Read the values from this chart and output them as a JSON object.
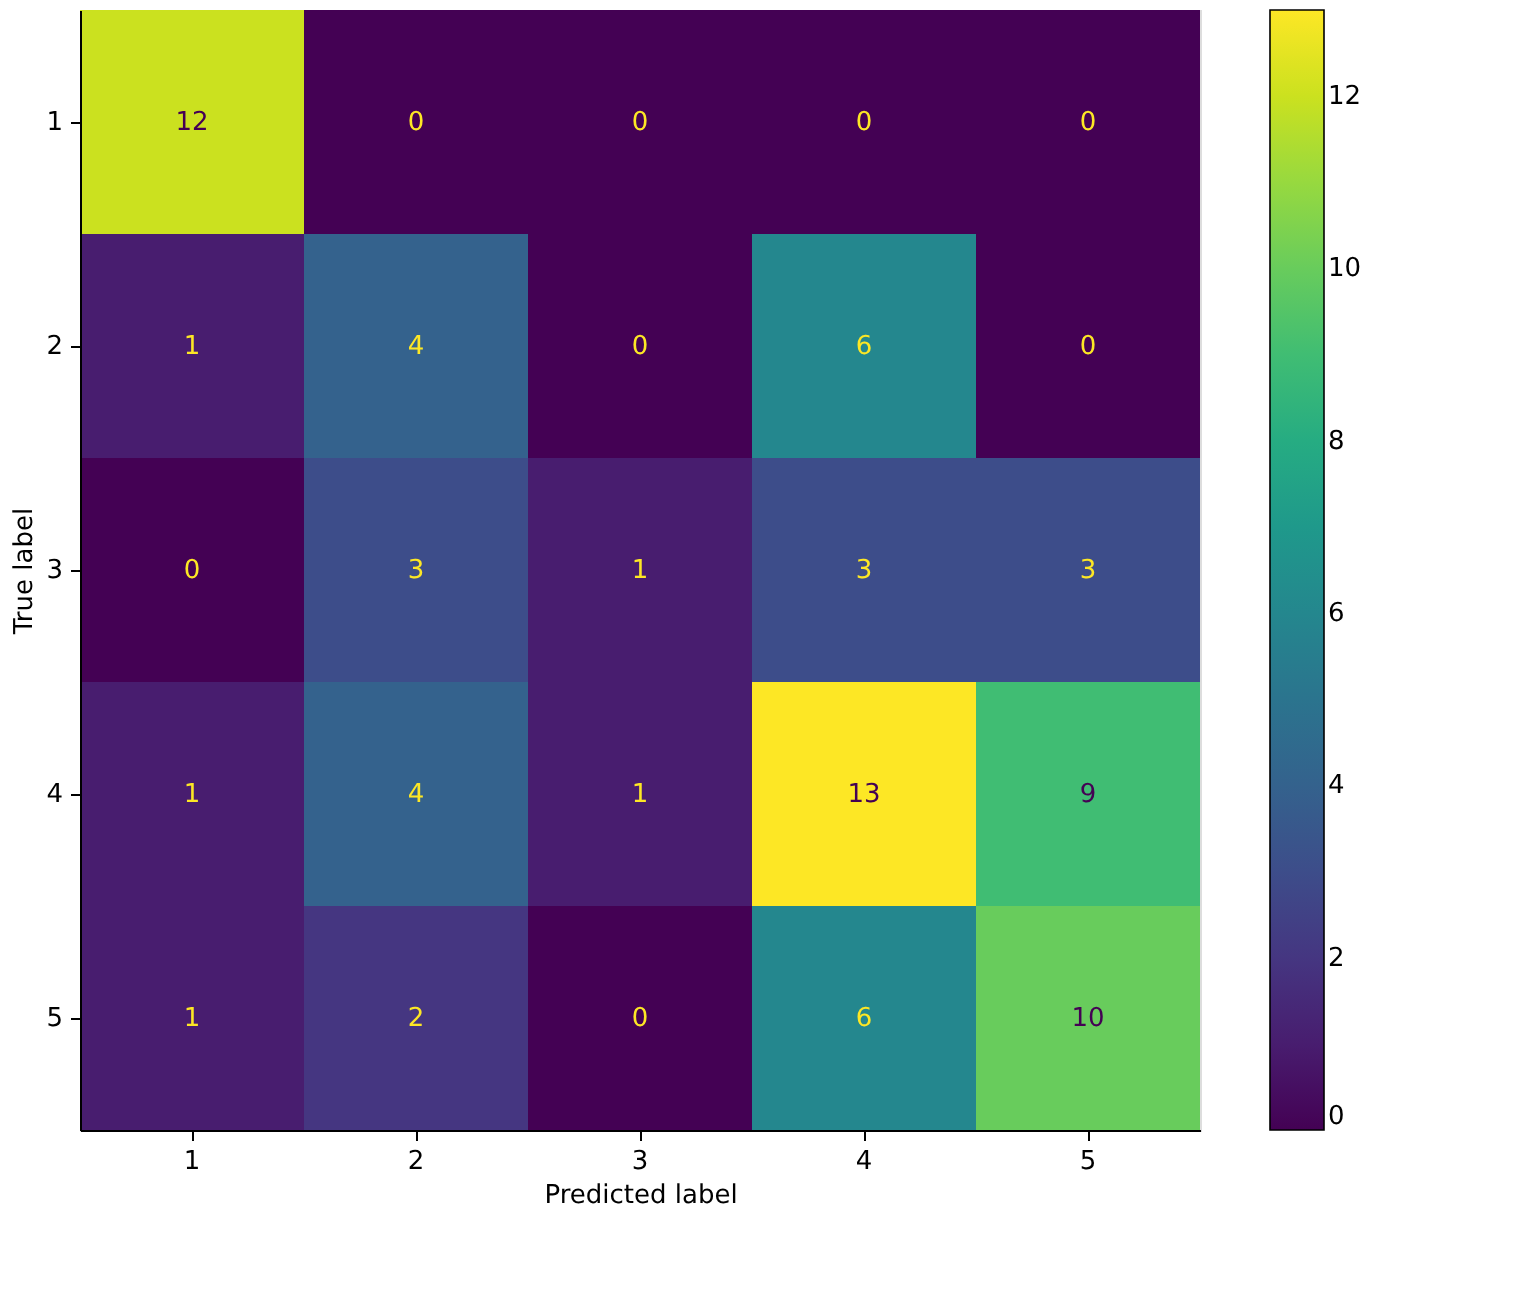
{
  "chart_data": {
    "type": "heatmap",
    "xlabel": "Predicted label",
    "ylabel": "True label",
    "categories": [
      "1",
      "2",
      "3",
      "4",
      "5"
    ],
    "y_categories": [
      "1",
      "2",
      "3",
      "4",
      "5"
    ],
    "cells": [
      [
        12,
        0,
        0,
        0,
        0
      ],
      [
        1,
        4,
        0,
        6,
        0
      ],
      [
        0,
        3,
        1,
        3,
        3
      ],
      [
        1,
        4,
        1,
        13,
        9
      ],
      [
        1,
        2,
        0,
        6,
        10
      ]
    ],
    "clim": [
      0,
      13
    ],
    "cticks": [
      0,
      2,
      4,
      6,
      8,
      10,
      12
    ],
    "data_labels": true,
    "grid": false
  }
}
